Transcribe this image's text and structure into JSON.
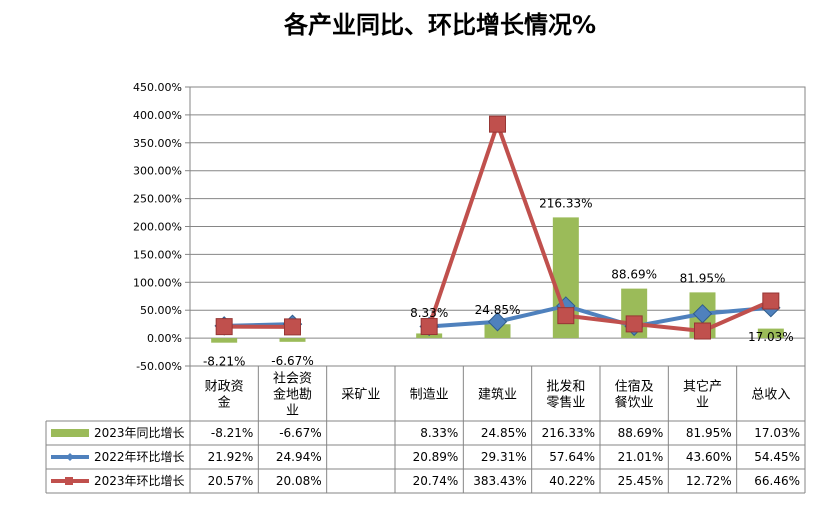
{
  "chart_data": {
    "type": "bar",
    "title": "各产业同比、环比增长情况%",
    "categories": [
      "财政资\n金",
      "社会资\n金地勘\n业",
      "采矿业",
      "制造业",
      "建筑业",
      "批发和\n零售业",
      "住宿及\n餐饮业",
      "其它产\n业",
      "总收入"
    ],
    "ylim": [
      -50,
      450
    ],
    "yticks": [
      "-50.00%",
      "0.00%",
      "50.00%",
      "100.00%",
      "150.00%",
      "200.00%",
      "250.00%",
      "300.00%",
      "350.00%",
      "400.00%",
      "450.00%"
    ],
    "grid": true,
    "legend": "table-bottom",
    "series": [
      {
        "name": "2023年同比增长",
        "kind": "bar",
        "color": "#9BBB59",
        "values": [
          -8.21,
          -6.67,
          null,
          8.33,
          24.85,
          216.33,
          88.69,
          81.95,
          17.03
        ],
        "labels": [
          "-8.21%",
          "-6.67%",
          "",
          "8.33%",
          "24.85%",
          "216.33%",
          "88.69%",
          "81.95%",
          "17.03%"
        ]
      },
      {
        "name": "2022年环比增长",
        "kind": "line",
        "marker": "diamond",
        "color": "#4F81BD",
        "values": [
          21.92,
          24.94,
          null,
          20.89,
          29.31,
          57.64,
          21.01,
          43.6,
          54.45
        ],
        "labels": [
          "21.92%",
          "24.94%",
          "",
          "20.89%",
          "29.31%",
          "57.64%",
          "21.01%",
          "43.60%",
          "54.45%"
        ]
      },
      {
        "name": "2023年环比增长",
        "kind": "line",
        "marker": "square",
        "color": "#C0504D",
        "values": [
          20.57,
          20.08,
          null,
          20.74,
          383.43,
          40.22,
          25.45,
          12.72,
          66.46
        ],
        "labels": [
          "20.57%",
          "20.08%",
          "",
          "20.74%",
          "383.43%",
          "40.22%",
          "25.45%",
          "12.72%",
          "66.46%"
        ]
      }
    ],
    "data_labels": [
      "-8.21%",
      "-6.67%",
      "",
      "8.33%",
      "24.85%",
      "216.33%",
      "88.69%",
      "81.95%",
      "17.03%"
    ]
  }
}
